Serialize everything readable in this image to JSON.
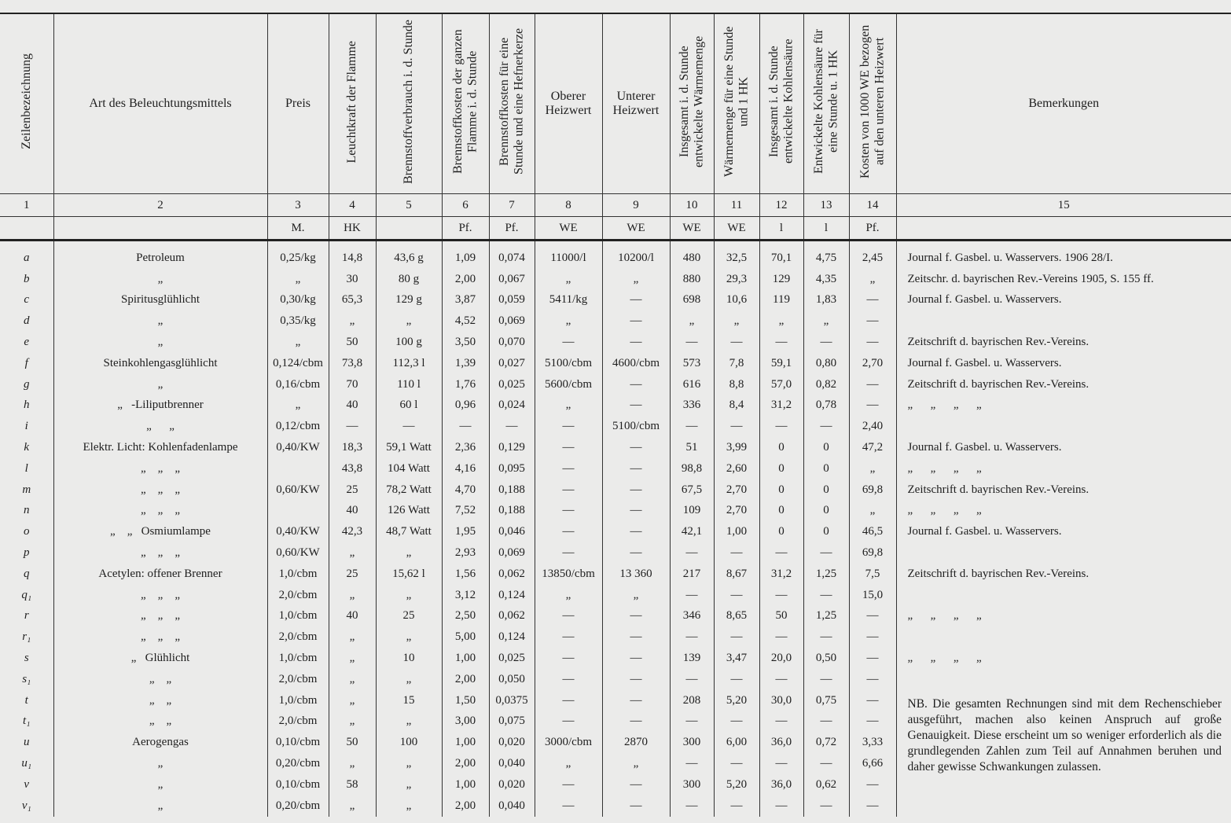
{
  "table": {
    "headers": [
      "Zeilenbezeichnung",
      "Art des Beleuchtungsmittels",
      "Preis",
      "Leuchtkraft der Flamme",
      "Brennstoffverbrauch i. d. Stunde",
      "Brennstoffkosten der ganzen Flamme i. d. Stunde",
      "Brennstoffkosten für eine Stunde und eine Hefnerkerze",
      "Oberer Heizwert",
      "Unterer Heizwert",
      "Insgesamt i. d. Stunde entwickelte Wärmemenge",
      "Wärmemenge für eine Stunde und 1 HK",
      "Insgesamt i. d. Stunde entwickelte Kohlensäure",
      "Entwickelte Kohlensäure für eine Stunde u. 1 HK",
      "Kosten von 1000 WE bezogen auf den unteren Heizwert",
      "Bemerkungen"
    ],
    "column_numbers": [
      "1",
      "2",
      "3",
      "4",
      "5",
      "6",
      "7",
      "8",
      "9",
      "10",
      "11",
      "12",
      "13",
      "14",
      "15"
    ],
    "units": [
      null,
      null,
      "M.",
      "HK",
      null,
      "Pf.",
      "Pf.",
      "WE",
      "WE",
      "WE",
      "WE",
      "l",
      "l",
      "Pf.",
      null
    ],
    "rows": [
      [
        "a",
        "Petroleum",
        "0,25/kg",
        "14,8",
        "43,6 g",
        "1,09",
        "0,074",
        "11000/l",
        "10200/l",
        "480",
        "32,5",
        "70,1",
        "4,75",
        "2,45",
        "Journal f. Gasbel. u. Wasservers. 1906 28/I."
      ],
      [
        "b",
        "„",
        "„",
        "30",
        "80 g",
        "2,00",
        "0,067",
        "„",
        "„",
        "880",
        "29,3",
        "129",
        "4,35",
        "„",
        "Zeitschr. d. bayrischen Rev.-Vereins 1905, S. 155 ff."
      ],
      [
        "c",
        "Spiritusglühlicht",
        "0,30/kg",
        "65,3",
        "129 g",
        "3,87",
        "0,059",
        "5411/kg",
        "—",
        "698",
        "10,6",
        "119",
        "1,83",
        "—",
        "Journal f. Gasbel. u. Wasservers."
      ],
      [
        "d",
        "„",
        "0,35/kg",
        "„",
        "„",
        "4,52",
        "0,069",
        "„",
        "—",
        "„",
        "„",
        "„",
        "„",
        "—",
        null
      ],
      [
        "e",
        "„",
        "„",
        "50",
        "100 g",
        "3,50",
        "0,070",
        "—",
        "—",
        "—",
        "—",
        "—",
        "—",
        "—",
        "Zeitschrift d. bayrischen Rev.-Vereins."
      ],
      [
        "f",
        "Steinkohlengasglühlicht",
        "0,124/cbm",
        "73,8",
        "112,3 l",
        "1,39",
        "0,027",
        "5100/cbm",
        "4600/cbm",
        "573",
        "7,8",
        "59,1",
        "0,80",
        "2,70",
        "Journal f. Gasbel. u. Wasservers."
      ],
      [
        "g",
        "„",
        "0,16/cbm",
        "70",
        "110 l",
        "1,76",
        "0,025",
        "5600/cbm",
        "—",
        "616",
        "8,8",
        "57,0",
        "0,82",
        "—",
        "Zeitschrift d. bayrischen Rev.-Vereins."
      ],
      [
        "h",
        "„   -Liliputbrenner",
        "„",
        "40",
        "60 l",
        "0,96",
        "0,024",
        "„",
        "—",
        "336",
        "8,4",
        "31,2",
        "0,78",
        "—",
        "„      „      „      „"
      ],
      [
        "i",
        "„      „",
        "0,12/cbm",
        "—",
        "—",
        "—",
        "—",
        "—",
        "5100/cbm",
        "—",
        "—",
        "—",
        "—",
        "2,40",
        null
      ],
      [
        "k",
        "Elektr. Licht: Kohlenfadenlampe",
        "0,40/KW",
        "18,3",
        "59,1 Watt",
        "2,36",
        "0,129",
        "—",
        "—",
        "51",
        "3,99",
        "0",
        "0",
        "47,2",
        "Journal f. Gasbel. u. Wasservers."
      ],
      [
        "l",
        "„    „    „",
        null,
        "43,8",
        "104 Watt",
        "4,16",
        "0,095",
        "—",
        "—",
        "98,8",
        "2,60",
        "0",
        "0",
        "„",
        "„      „      „      „"
      ],
      [
        "m",
        "„    „    „",
        "0,60/KW",
        "25",
        "78,2 Watt",
        "4,70",
        "0,188",
        "—",
        "—",
        "67,5",
        "2,70",
        "0",
        "0",
        "69,8",
        "Zeitschrift d. bayrischen Rev.-Vereins."
      ],
      [
        "n",
        "„    „    „",
        null,
        "40",
        "126 Watt",
        "7,52",
        "0,188",
        "—",
        "—",
        "109",
        "2,70",
        "0",
        "0",
        "„",
        "„      „      „      „"
      ],
      [
        "o",
        "„    „   Osmiumlampe",
        "0,40/KW",
        "42,3",
        "48,7 Watt",
        "1,95",
        "0,046",
        "—",
        "—",
        "42,1",
        "1,00",
        "0",
        "0",
        "46,5",
        "Journal f. Gasbel. u. Wasservers."
      ],
      [
        "p",
        "„    „    „",
        "0,60/KW",
        "„",
        "„",
        "2,93",
        "0,069",
        "—",
        "—",
        "—",
        "—",
        "—",
        "—",
        "69,8",
        null
      ],
      [
        "q",
        "Acetylen: offener Brenner",
        "1,0/cbm",
        "25",
        "15,62 l",
        "1,56",
        "0,062",
        "13850/cbm",
        "13 360",
        "217",
        "8,67",
        "31,2",
        "1,25",
        "7,5",
        "Zeitschrift d. bayrischen Rev.-Vereins."
      ],
      [
        "q₁",
        "„    „    „",
        "2,0/cbm",
        "„",
        "„",
        "3,12",
        "0,124",
        "„",
        "„",
        "—",
        "—",
        "—",
        "—",
        "15,0",
        null
      ],
      [
        "r",
        "„    „    „",
        "1,0/cbm",
        "40",
        "25",
        "2,50",
        "0,062",
        "—",
        "—",
        "346",
        "8,65",
        "50",
        "1,25",
        "—",
        "„      „      „      „"
      ],
      [
        "r₁",
        "„    „    „",
        "2,0/cbm",
        "„",
        "„",
        "5,00",
        "0,124",
        "—",
        "—",
        "—",
        "—",
        "—",
        "—",
        "—",
        null
      ],
      [
        "s",
        "„   Glühlicht",
        "1,0/cbm",
        "„",
        "10",
        "1,00",
        "0,025",
        "—",
        "—",
        "139",
        "3,47",
        "20,0",
        "0,50",
        "—",
        "„      „      „      „"
      ],
      [
        "s₁",
        "„    „",
        "2,0/cbm",
        "„",
        "„",
        "2,00",
        "0,050",
        "—",
        "—",
        "—",
        "—",
        "—",
        "—",
        "—",
        null
      ],
      [
        "t",
        "„    „",
        "1,0/cbm",
        "„",
        "15",
        "1,50",
        "0,0375",
        "—",
        "—",
        "208",
        "5,20",
        "30,0",
        "0,75",
        "—",
        null
      ],
      [
        "t₁",
        "„    „",
        "2,0/cbm",
        "„",
        "„",
        "3,00",
        "0,075",
        "—",
        "—",
        "—",
        "—",
        "—",
        "—",
        "—",
        null
      ],
      [
        "u",
        "Aerogengas",
        "0,10/cbm",
        "50",
        "100",
        "1,00",
        "0,020",
        "3000/cbm",
        "2870",
        "300",
        "6,00",
        "36,0",
        "0,72",
        "3,33",
        null
      ],
      [
        "u₁",
        "„",
        "0,20/cbm",
        "„",
        "„",
        "2,00",
        "0,040",
        "„",
        "„",
        "—",
        "—",
        "—",
        "—",
        "6,66",
        null
      ],
      [
        "v",
        "„",
        "0,10/cbm",
        "58",
        "„",
        "1,00",
        "0,020",
        "—",
        "—",
        "300",
        "5,20",
        "36,0",
        "0,62",
        "—",
        null
      ],
      [
        "v₁",
        "„",
        "0,20/cbm",
        "„",
        "„",
        "2,00",
        "0,040",
        "—",
        "—",
        "—",
        "—",
        "—",
        "—",
        "—",
        null
      ]
    ]
  },
  "note": "NB. Die gesamten Rechnungen sind mit dem Rechenschieber ausgeführt, machen also keinen Anspruch auf große Genauigkeit. Diese erscheint um so weniger erforderlich als die grundlegenden Zahlen zum Teil auf Annahmen beruhen und daher gewisse Schwankungen zulassen."
}
